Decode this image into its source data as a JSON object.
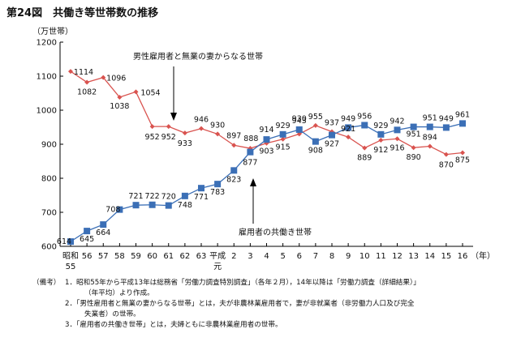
{
  "figure_title": "第24図　共働き等世帯数の推移",
  "colors": {
    "series_male": "#d9534f",
    "series_dual": "#3b6fb6",
    "axis": "#000000",
    "text": "#111111"
  },
  "chart_data": {
    "type": "line",
    "ylabel": "（万世帯）",
    "xlabel": "（年）",
    "ylim": [
      600,
      1200
    ],
    "yticks": [
      600,
      700,
      800,
      900,
      1000,
      1100,
      1200
    ],
    "categories": [
      "昭和55",
      "56",
      "57",
      "58",
      "59",
      "60",
      "61",
      "62",
      "63",
      "平成元",
      "2",
      "3",
      "4",
      "5",
      "6",
      "7",
      "8",
      "9",
      "10",
      "11",
      "12",
      "13",
      "14",
      "15",
      "16"
    ],
    "series": [
      {
        "name": "男性雇用者と無業の妻からなる世帯",
        "marker": "diamond",
        "values": [
          1114,
          1082,
          1096,
          1038,
          1054,
          952,
          952,
          933,
          946,
          930,
          897,
          888,
          903,
          915,
          930,
          955,
          937,
          921,
          889,
          912,
          916,
          890,
          894,
          870,
          875
        ]
      },
      {
        "name": "雇用者の共働き世帯",
        "marker": "square",
        "values": [
          614,
          645,
          664,
          708,
          721,
          722,
          720,
          748,
          771,
          783,
          823,
          877,
          914,
          929,
          943,
          908,
          927,
          949,
          956,
          929,
          942,
          951,
          951,
          949,
          961
        ]
      }
    ]
  },
  "notes": {
    "label": "（備考）",
    "items": [
      {
        "lines": [
          "1．昭和55年から平成13年は総務省「労働力調査特別調査」（各年２月），14年以降は「労働力調査（詳細結果）」",
          "（年平均）より作成。"
        ]
      },
      {
        "lines": [
          "2．「男性雇用者と無業の妻からなる世帯」とは，夫が非農林業雇用者で，妻が非就業者（非労働力人口及び完全",
          "失業者）の世帯。"
        ]
      },
      {
        "lines": [
          "3．「雇用者の共働き世帯」とは，夫婦ともに非農林業雇用者の世帯。"
        ]
      }
    ]
  }
}
